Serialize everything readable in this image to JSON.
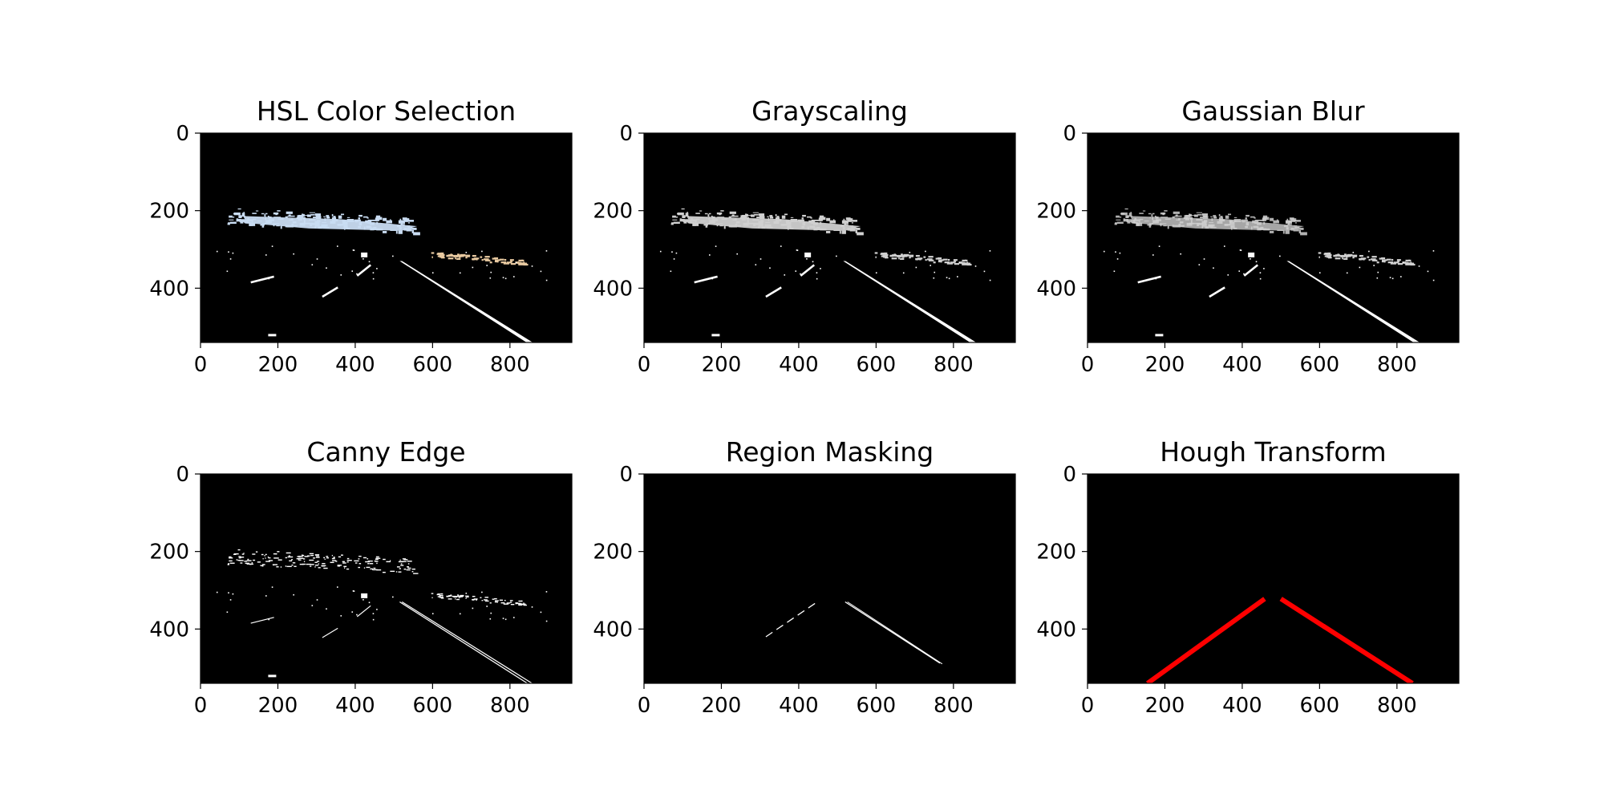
{
  "figure": {
    "image_width": 960,
    "image_height": 540,
    "x_ticks": [
      0,
      200,
      400,
      600,
      800
    ],
    "y_ticks": [
      0,
      200,
      400
    ],
    "panels": [
      {
        "id": "hsl",
        "title": "HSL Color Selection",
        "content": "hsl"
      },
      {
        "id": "gray",
        "title": "Grayscaling",
        "content": "gray"
      },
      {
        "id": "blur",
        "title": "Gaussian Blur",
        "content": "blur"
      },
      {
        "id": "canny",
        "title": "Canny Edge",
        "content": "canny"
      },
      {
        "id": "region",
        "title": "Region Masking",
        "content": "region"
      },
      {
        "id": "hough",
        "title": "Hough Transform",
        "content": "hough"
      }
    ],
    "colors": {
      "background": "#000000",
      "lane_white": "#ffffff",
      "sky_blue": "#c9dcf2",
      "sand": "#e8c9a0",
      "gray_light": "#d0d0d0",
      "hough_red": "#ff0000"
    },
    "scene": {
      "right_lane": {
        "x1": 515,
        "y1": 330,
        "x2": 845,
        "y2": 540
      },
      "left_dashes": [
        {
          "x1": 315,
          "y1": 422,
          "x2": 355,
          "y2": 398
        },
        {
          "x1": 405,
          "y1": 368,
          "x2": 440,
          "y2": 340
        },
        {
          "x1": 130,
          "y1": 385,
          "x2": 190,
          "y2": 370
        }
      ],
      "region_left": {
        "x1": 315,
        "y1": 420,
        "x2": 445,
        "y2": 332
      },
      "region_right": {
        "x1": 520,
        "y1": 330,
        "x2": 765,
        "y2": 488
      },
      "hough_left": {
        "x1": 155,
        "y1": 540,
        "x2": 458,
        "y2": 322
      },
      "hough_right": {
        "x1": 500,
        "y1": 322,
        "x2": 840,
        "y2": 540
      }
    }
  }
}
